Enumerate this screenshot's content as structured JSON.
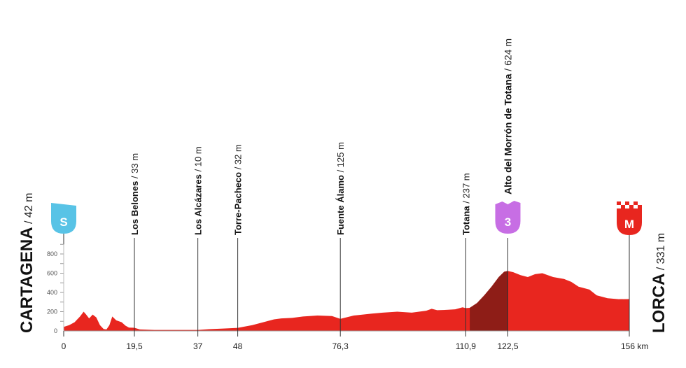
{
  "chart_data": {
    "type": "area",
    "x_unit": "km",
    "ylim": [
      0,
      900
    ],
    "y_ticks": [
      0,
      200,
      400,
      600,
      800
    ],
    "colors": {
      "profile": "#e8261f",
      "climb": "#8e1d17",
      "start_badge": "#58c3e6",
      "kom_badge": "#c76ee4",
      "finish_badge": "#e8261f"
    },
    "profile": {
      "x": [
        0,
        1.5,
        3,
        4.5,
        5.5,
        6.2,
        7,
        8,
        9,
        10,
        11,
        11.8,
        12.6,
        13.4,
        14.5,
        16,
        17,
        18,
        19.5,
        21,
        25,
        30,
        34,
        37,
        40,
        44,
        48,
        52,
        55,
        58,
        60,
        63,
        66,
        70,
        74,
        76.3,
        80,
        85,
        88,
        92,
        96,
        100,
        101.5,
        103,
        106,
        108,
        110,
        110.9,
        112,
        114,
        116,
        118,
        120,
        121.5,
        122.5,
        124,
        126,
        128,
        130,
        132,
        135,
        138,
        140,
        142,
        145,
        147,
        150,
        153,
        156
      ],
      "y": [
        42,
        60,
        90,
        150,
        200,
        170,
        130,
        170,
        140,
        60,
        20,
        15,
        60,
        150,
        110,
        90,
        55,
        35,
        33,
        15,
        10,
        10,
        10,
        10,
        18,
        25,
        32,
        60,
        90,
        120,
        130,
        135,
        150,
        160,
        155,
        125,
        160,
        180,
        190,
        200,
        190,
        210,
        230,
        215,
        220,
        225,
        245,
        237,
        240,
        290,
        370,
        460,
        560,
        615,
        624,
        610,
        580,
        560,
        590,
        600,
        560,
        540,
        510,
        460,
        430,
        370,
        340,
        330,
        331
      ]
    },
    "climb_range": [
      112,
      122.5
    ],
    "x_ticks": [
      {
        "x": 0,
        "label": "0"
      },
      {
        "x": 19.5,
        "label": "19,5"
      },
      {
        "x": 37,
        "label": "37"
      },
      {
        "x": 48,
        "label": "48"
      },
      {
        "x": 76.3,
        "label": "76,3"
      },
      {
        "x": 110.9,
        "label": "110,9"
      },
      {
        "x": 122.5,
        "label": "122,5"
      },
      {
        "x": 156,
        "label": "156 km"
      }
    ],
    "waypoints": [
      {
        "x": 19.5,
        "name": "Los Belones",
        "alt": " / 33 m"
      },
      {
        "x": 37,
        "name": "Los Alcázares",
        "alt": " / 10 m"
      },
      {
        "x": 48,
        "name": "Torre-Pacheco",
        "alt": " / 32 m"
      },
      {
        "x": 76.3,
        "name": "Fuente Álamo",
        "alt": " / 125 m"
      },
      {
        "x": 110.9,
        "name": "Totana",
        "alt": " / 237 m"
      },
      {
        "x": 122.5,
        "name": "Alto del Morrón de Totana",
        "alt": " / 624 m"
      }
    ],
    "start": {
      "name": "CARTAGENA",
      "alt": " / 42 m",
      "badge": "S"
    },
    "finish": {
      "name": "LORCA",
      "alt": " / 331 m",
      "badge": "M"
    },
    "kom": {
      "x": 122.5,
      "badge": "3"
    }
  }
}
